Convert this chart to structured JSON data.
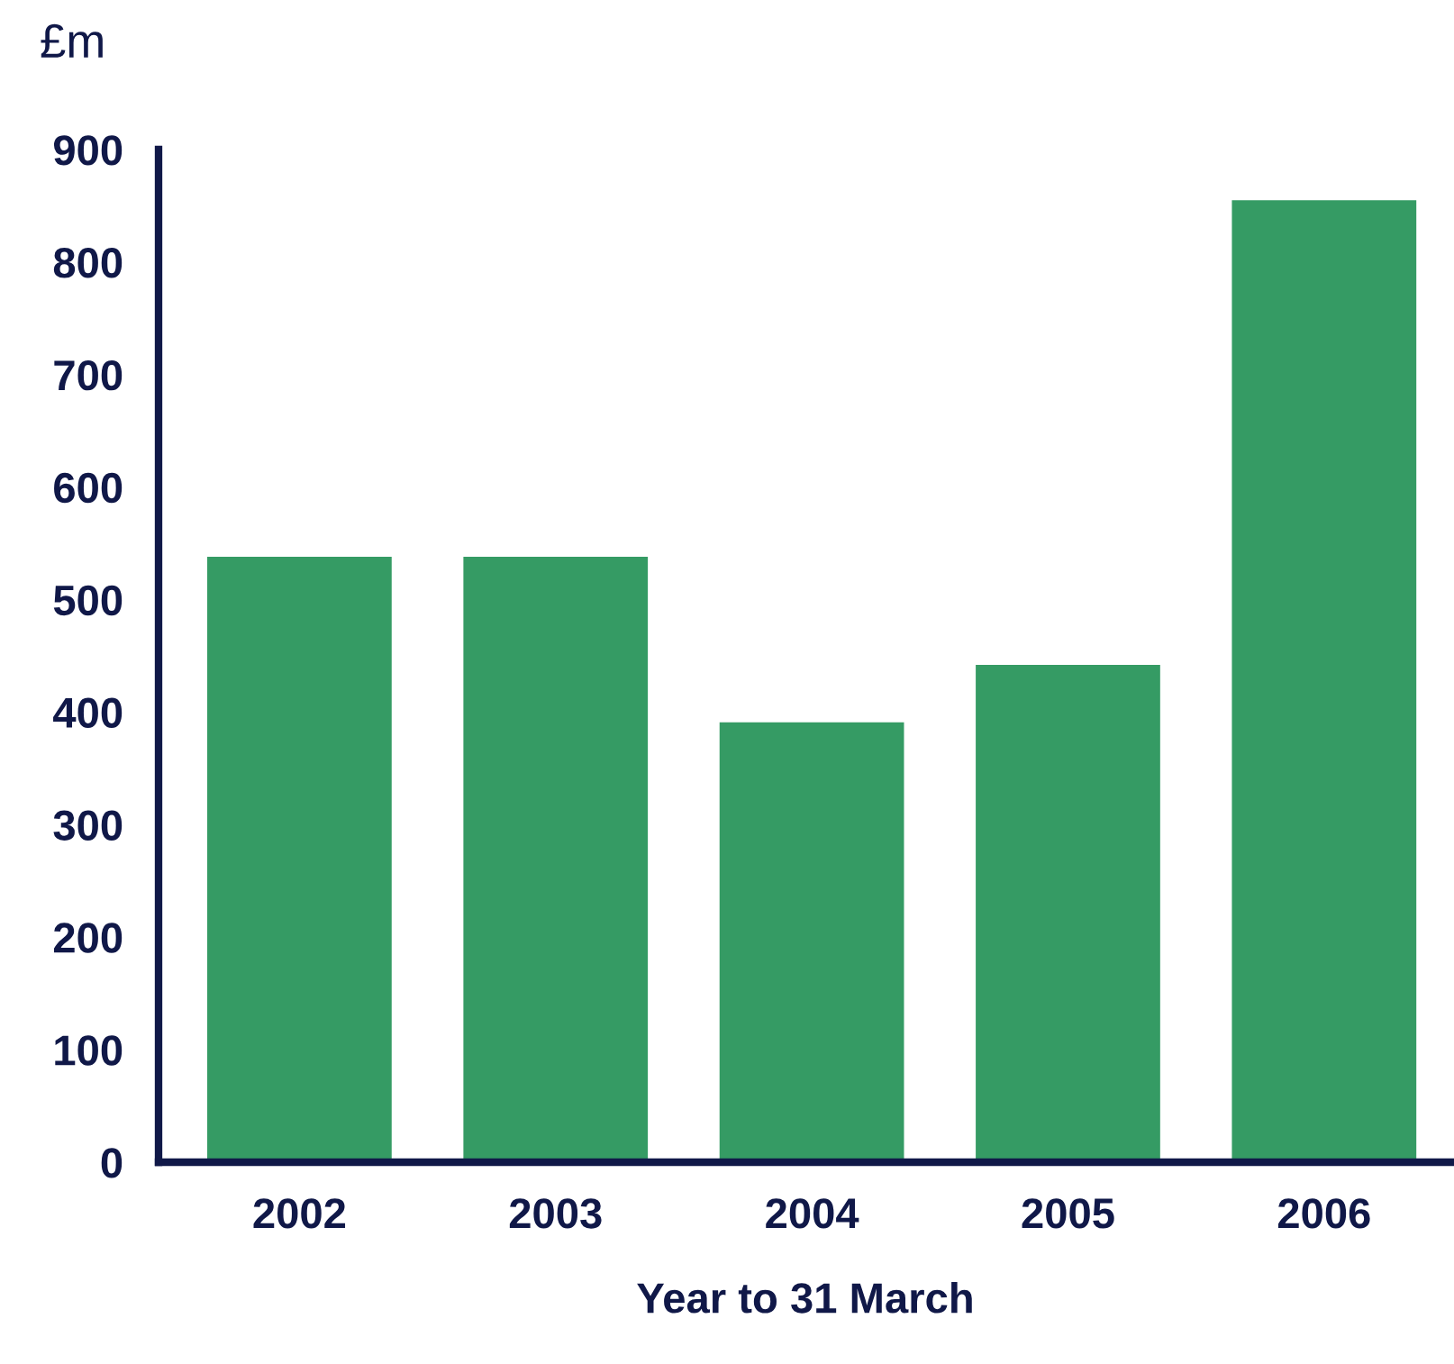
{
  "chart_data": {
    "type": "bar",
    "ylabel": "£m",
    "xlabel": "Year to 31 March",
    "categories": [
      "2002",
      "2003",
      "2004",
      "2005",
      "2006"
    ],
    "values": [
      538,
      538,
      391,
      442,
      855
    ],
    "color": "#359b64",
    "ylim": [
      0,
      900
    ],
    "yticks": [
      0,
      100,
      200,
      300,
      400,
      500,
      600,
      700,
      800,
      900
    ],
    "grid": false,
    "legend": false
  }
}
